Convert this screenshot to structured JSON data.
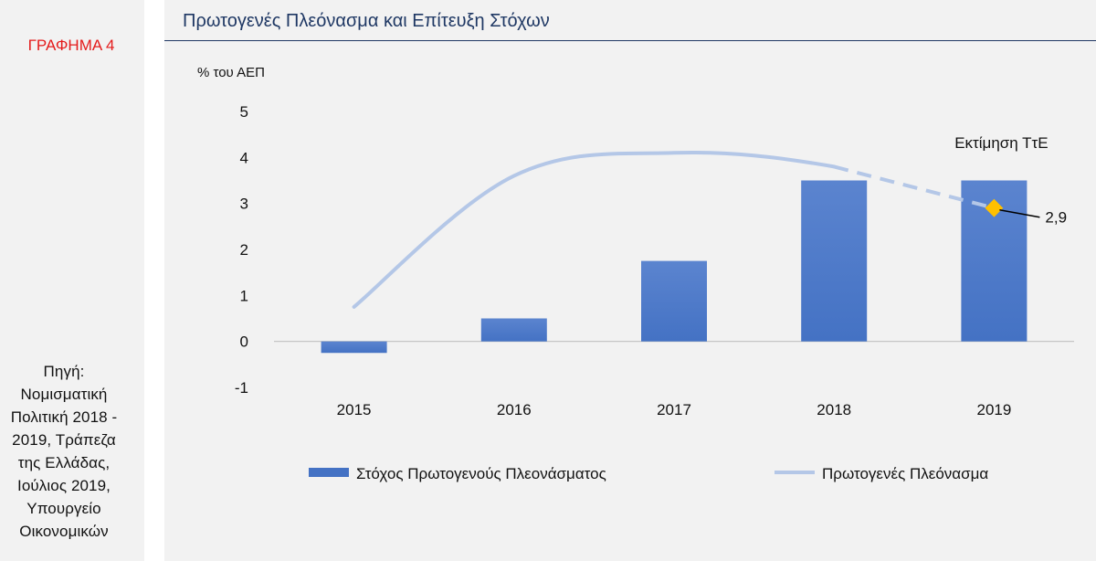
{
  "figure_label": "ΓΡΑΦΗΜΑ 4",
  "source_lines": [
    "Πηγή:",
    "Νομισματική",
    "Πολιτική 2018 -",
    "2019, Τράπεζα",
    "της Ελλάδας,",
    "Ιούλιος 2019,",
    "Υπουργείο",
    "Οικονομικών"
  ],
  "colors": {
    "bar": "#4472c4",
    "line": "#b4c7e7",
    "marker": "#ffc000",
    "title": "#1f3864",
    "label": "#e41b1b"
  },
  "chart_data": {
    "type": "bar",
    "title": "Πρωτογενές Πλεόνασμα και Επίτευξη Στόχων",
    "ylabel": "% του ΑΕΠ",
    "xlabel": "",
    "ylim": [
      -1,
      5
    ],
    "yticks": [
      5,
      4,
      3,
      2,
      1,
      0,
      -1
    ],
    "categories": [
      "2015",
      "2016",
      "2017",
      "2018",
      "2019"
    ],
    "series": [
      {
        "name": "Στόχος Πρωτογενούς Πλεονάσματος",
        "type": "bar",
        "values": [
          -0.25,
          0.5,
          1.75,
          3.5,
          3.5
        ]
      },
      {
        "name": "Πρωτογενές Πλεόνασμα",
        "type": "line",
        "values": [
          0.75,
          3.6,
          4.1,
          3.8,
          2.9
        ],
        "dashed_from_index": 3
      }
    ],
    "annotations": [
      {
        "text": "Εκτίμηση ΤτΕ",
        "category": "2019"
      },
      {
        "text": "2,9",
        "category": "2019",
        "value": 2.9
      }
    ],
    "legend_position": "bottom",
    "grid": false
  }
}
